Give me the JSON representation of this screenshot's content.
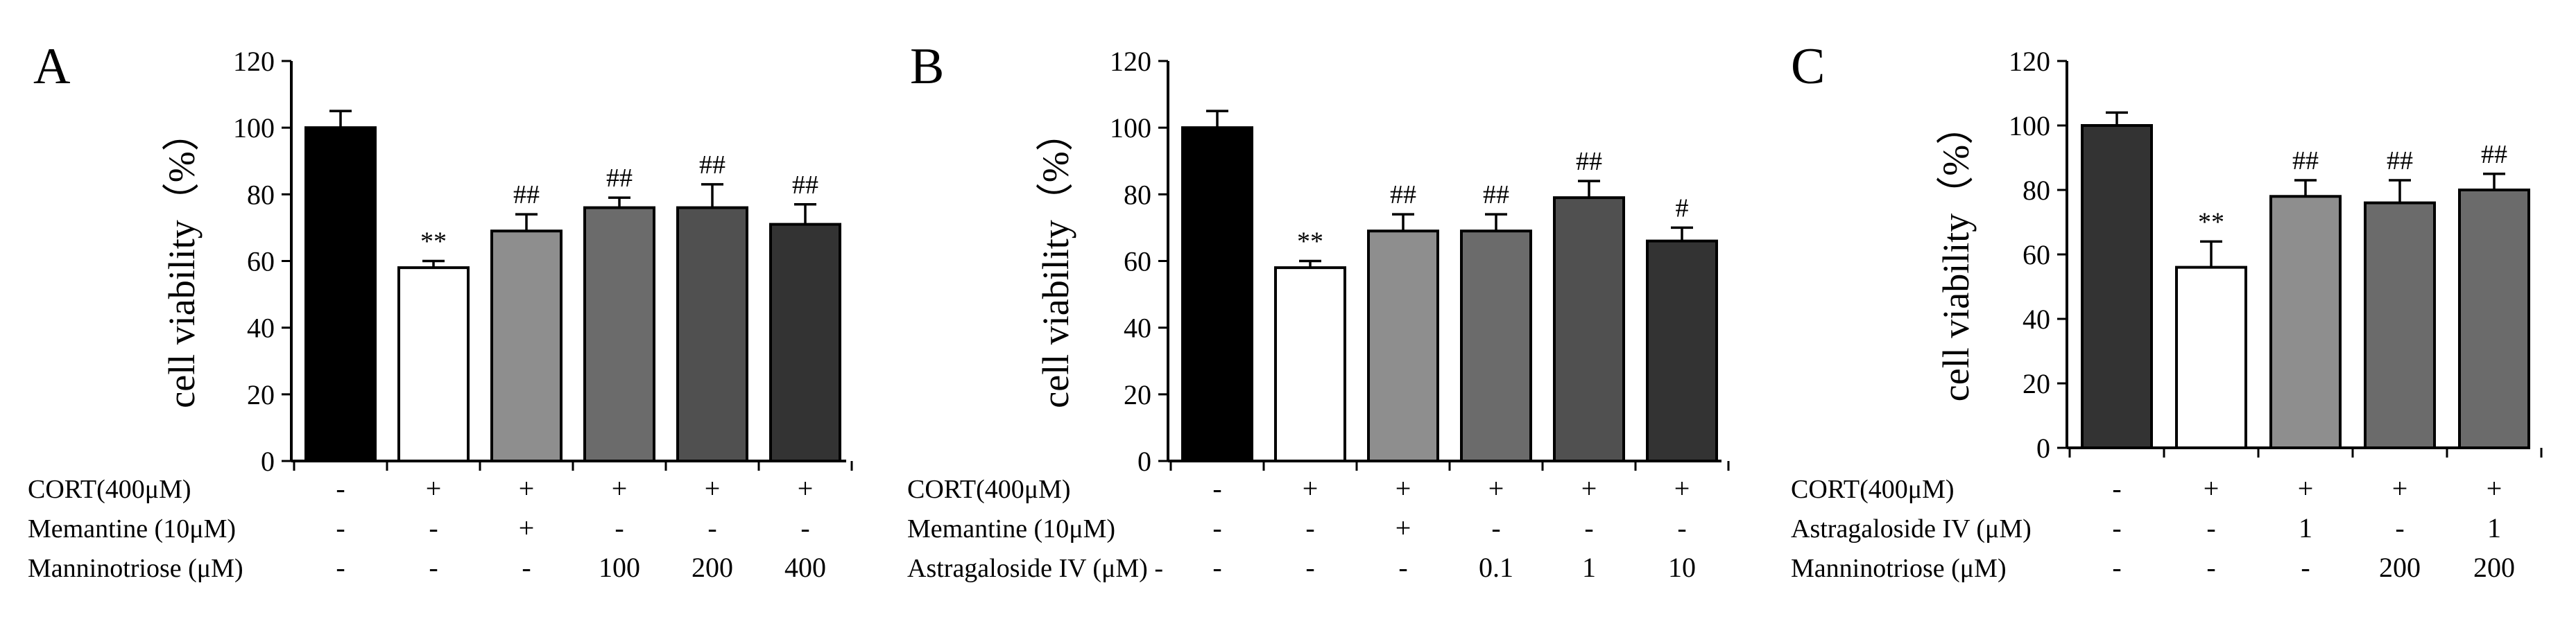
{
  "chart_data": [
    {
      "panel": "A",
      "type": "bar",
      "ylabel": "cell viability（%）",
      "ylim": [
        0,
        120
      ],
      "yticks": [
        0,
        20,
        40,
        60,
        80,
        100,
        120
      ],
      "values": [
        100,
        58,
        69,
        76,
        76,
        71
      ],
      "errors": [
        5,
        2,
        5,
        3,
        7,
        6
      ],
      "colors": [
        "#000000",
        "#ffffff",
        "#8e8e8e",
        "#6b6b6b",
        "#505050",
        "#333333"
      ],
      "significance": [
        "",
        "**",
        "##",
        "##",
        "##",
        "##"
      ],
      "conditions": [
        {
          "label": "CORT(400μM)",
          "values": [
            "-",
            "+",
            "+",
            "+",
            "+",
            "+"
          ]
        },
        {
          "label": "Memantine  (10μM)",
          "values": [
            "-",
            "-",
            "+",
            "-",
            "-",
            "-"
          ]
        },
        {
          "label": "Manninotriose (μM)",
          "values": [
            "-",
            "-",
            "-",
            "100",
            "200",
            "400"
          ]
        }
      ]
    },
    {
      "panel": "B",
      "type": "bar",
      "ylabel": "cell viability（%）",
      "ylim": [
        0,
        120
      ],
      "yticks": [
        0,
        20,
        40,
        60,
        80,
        100,
        120
      ],
      "values": [
        100,
        58,
        69,
        69,
        79,
        66
      ],
      "errors": [
        5,
        2,
        5,
        5,
        5,
        4
      ],
      "colors": [
        "#000000",
        "#ffffff",
        "#8e8e8e",
        "#6b6b6b",
        "#505050",
        "#333333"
      ],
      "significance": [
        "",
        "**",
        "##",
        "##",
        "##",
        "#"
      ],
      "conditions": [
        {
          "label": "CORT(400μM)",
          "values": [
            "-",
            "+",
            "+",
            "+",
            "+",
            "+"
          ]
        },
        {
          "label": "Memantine  (10μM)",
          "values": [
            "-",
            "-",
            "+",
            "-",
            "-",
            "-"
          ]
        },
        {
          "label": "Astragaloside IV (μM) -",
          "values": [
            "-",
            "-",
            "-",
            "0.1",
            "1",
            "10"
          ]
        }
      ]
    },
    {
      "panel": "C",
      "type": "bar",
      "ylabel": "cell viability（%）",
      "ylim": [
        0,
        120
      ],
      "yticks": [
        0,
        20,
        40,
        60,
        80,
        100,
        120
      ],
      "values": [
        100,
        56,
        78,
        76,
        80
      ],
      "errors": [
        4,
        8,
        5,
        7,
        5
      ],
      "colors": [
        "#333333",
        "#ffffff",
        "#8e8e8e",
        "#6b6b6b",
        "#6b6b6b"
      ],
      "significance": [
        "",
        "**",
        "##",
        "##",
        "##"
      ],
      "conditions": [
        {
          "label": "CORT(400μM)",
          "values": [
            "-",
            "+",
            "+",
            "+",
            "+"
          ]
        },
        {
          "label": "Astragaloside IV (μM)",
          "values": [
            "-",
            "-",
            "1",
            "-",
            "1"
          ]
        },
        {
          "label": "Manninotriose (μM)",
          "values": [
            "-",
            "-",
            "-",
            "200",
            "200"
          ]
        }
      ]
    }
  ]
}
